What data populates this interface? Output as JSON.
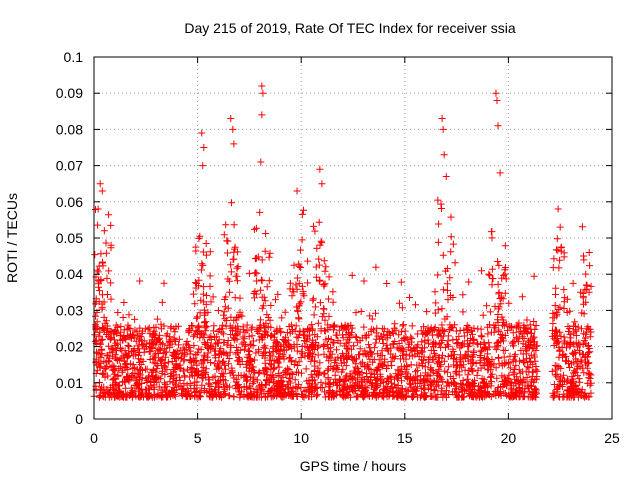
{
  "chart_data": {
    "type": "scatter",
    "title": "Day 215 of 2019, Rate Of TEC Index for receiver ssia",
    "xlabel": "GPS time / hours",
    "ylabel": "ROTI / TECUs",
    "xlim": [
      0,
      25
    ],
    "ylim": [
      0,
      0.1
    ],
    "xticks": [
      0,
      5,
      10,
      15,
      20,
      25
    ],
    "yticks": [
      0,
      0.01,
      0.02,
      0.03,
      0.04,
      0.05,
      0.06,
      0.07,
      0.08,
      0.09,
      0.1
    ],
    "xtick_labels": [
      "0",
      "5",
      "10",
      "15",
      "20",
      "25"
    ],
    "ytick_labels": [
      "0",
      "0.01",
      "0.02",
      "0.03",
      "0.04",
      "0.05",
      "0.06",
      "0.07",
      "0.08",
      "0.09",
      "0.1"
    ],
    "grid": true,
    "marker": "+",
    "color": "#ff0000",
    "data_gap_hours": [
      21.4,
      22.1
    ],
    "series": [
      {
        "name": "ROTI",
        "points": [
          [
            0.2,
            0.058
          ],
          [
            0.3,
            0.065
          ],
          [
            0.4,
            0.063
          ],
          [
            0.5,
            0.052
          ],
          [
            5.2,
            0.079
          ],
          [
            5.3,
            0.075
          ],
          [
            5.25,
            0.07
          ],
          [
            6.6,
            0.083
          ],
          [
            6.7,
            0.08
          ],
          [
            6.75,
            0.076
          ],
          [
            8.1,
            0.092
          ],
          [
            8.15,
            0.09
          ],
          [
            8.1,
            0.084
          ],
          [
            8.05,
            0.071
          ],
          [
            9.8,
            0.063
          ],
          [
            10.9,
            0.069
          ],
          [
            11.0,
            0.065
          ],
          [
            16.8,
            0.083
          ],
          [
            16.85,
            0.08
          ],
          [
            16.9,
            0.073
          ],
          [
            17.0,
            0.067
          ],
          [
            19.4,
            0.09
          ],
          [
            19.45,
            0.088
          ],
          [
            19.5,
            0.081
          ],
          [
            19.6,
            0.068
          ],
          [
            22.4,
            0.058
          ],
          [
            22.5,
            0.053
          ],
          [
            23.9,
            0.046
          ]
        ]
      }
    ]
  }
}
